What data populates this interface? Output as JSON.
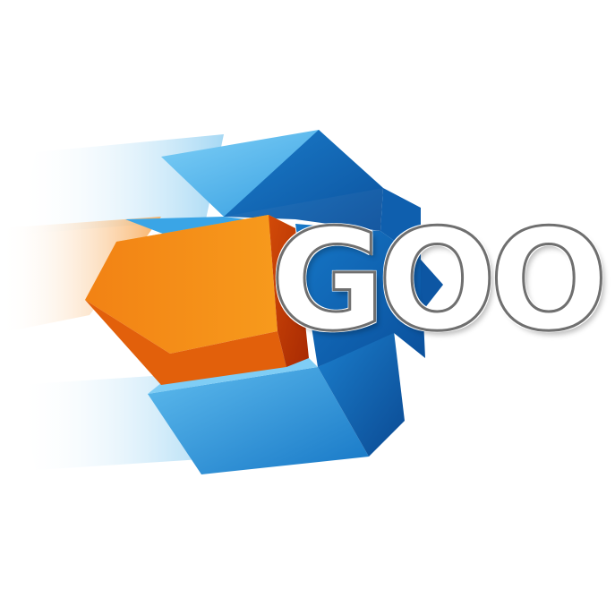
{
  "logo": {
    "wordmark": "GOO",
    "colors": {
      "blue_light": "#5bb8ee",
      "blue_mid": "#1f8fd9",
      "blue_dark": "#0a5cab",
      "orange_light": "#ffb01e",
      "orange_mid": "#f28a12",
      "orange_dark": "#c93a05",
      "text_fill": "#f6a315",
      "text_outline": "#6f6f6f"
    }
  }
}
